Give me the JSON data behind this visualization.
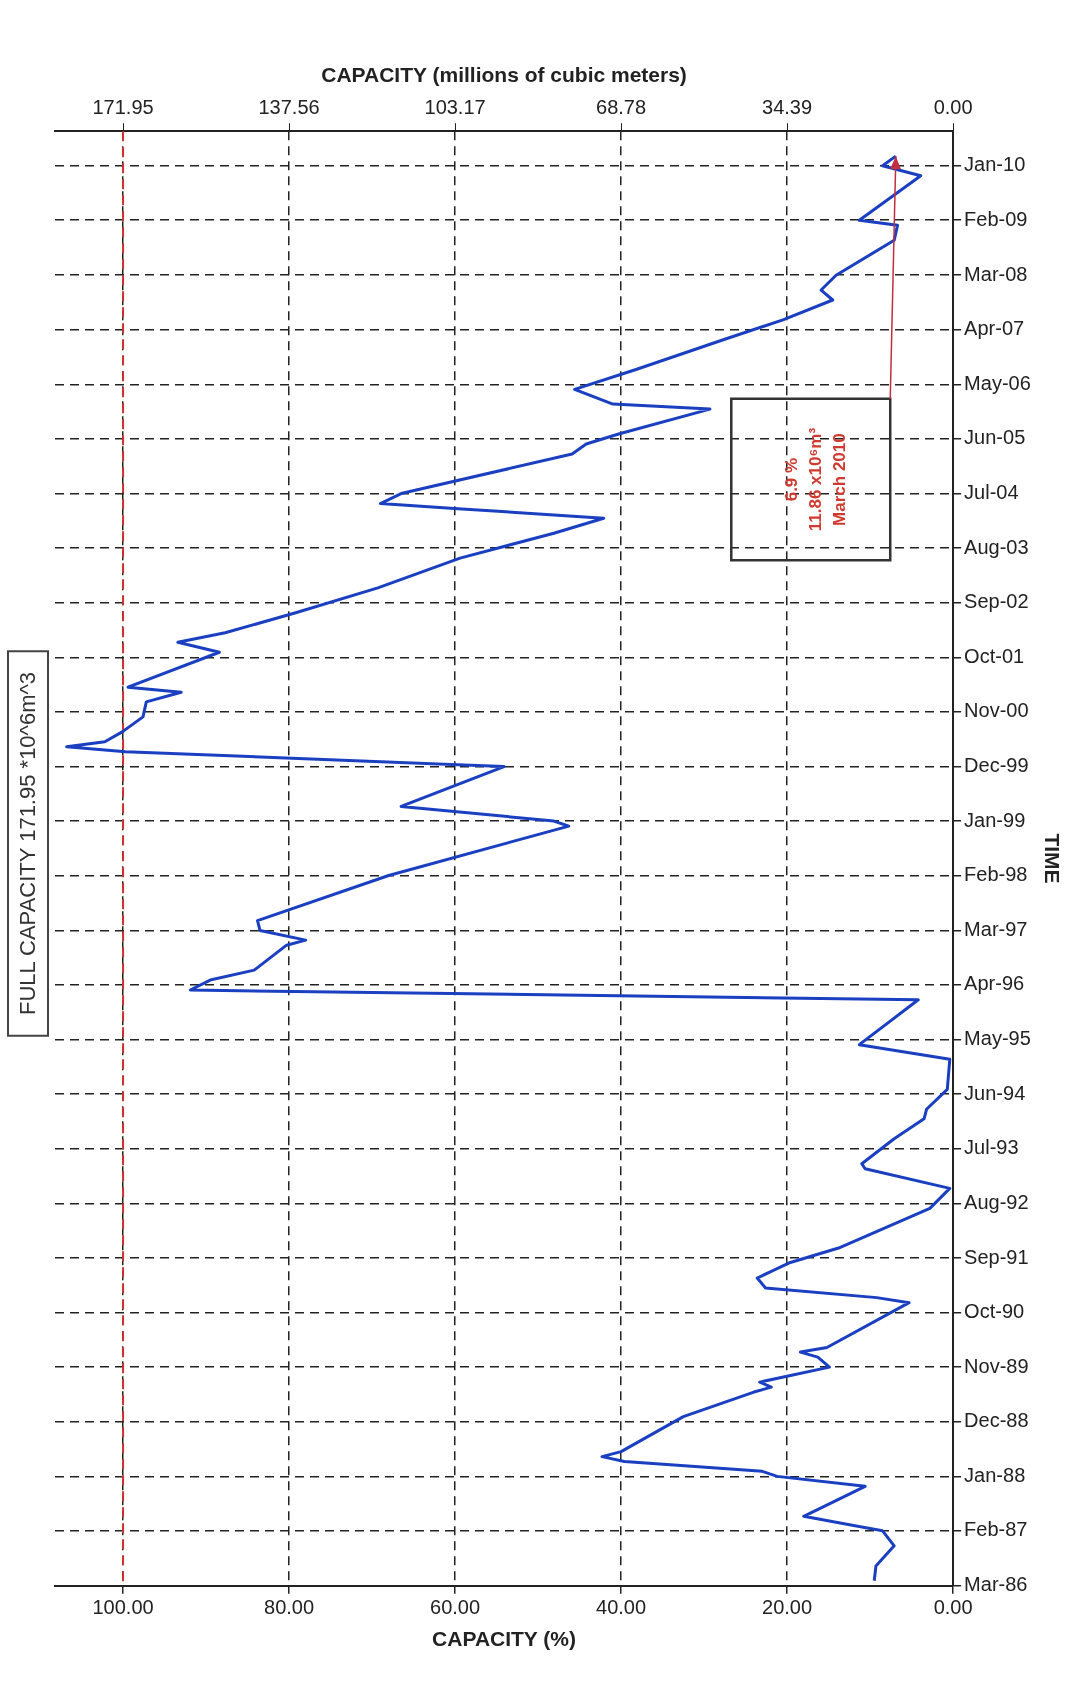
{
  "chart_data": {
    "type": "line",
    "orientation": "horizontal",
    "xlabel": "CAPACITY (%)",
    "x2label": "CAPACITY (millions of cubic meters)",
    "ylabel": "TIME",
    "annotations": [
      "FULL CAPACITY 171.95 *10^6m^3",
      "6.9 %\n11.86 x10⁶m³\nMarch 2010"
    ],
    "ylim": [
      "1986-03",
      "2010-08"
    ],
    "yticks": [
      {
        "value": "1986-03",
        "label": "Mar-86"
      },
      {
        "value": "1987-02",
        "label": "Feb-87"
      },
      {
        "value": "1988-01",
        "label": "Jan-88"
      },
      {
        "value": "1988-12",
        "label": "Dec-88"
      },
      {
        "value": "1989-11",
        "label": "Nov-89"
      },
      {
        "value": "1990-10",
        "label": "Oct-90"
      },
      {
        "value": "1991-09",
        "label": "Sep-91"
      },
      {
        "value": "1992-08",
        "label": "Aug-92"
      },
      {
        "value": "1993-07",
        "label": "Jul-93"
      },
      {
        "value": "1994-06",
        "label": "Jun-94"
      },
      {
        "value": "1995-05",
        "label": "May-95"
      },
      {
        "value": "1996-04",
        "label": "Apr-96"
      },
      {
        "value": "1997-03",
        "label": "Mar-97"
      },
      {
        "value": "1998-02",
        "label": "Feb-98"
      },
      {
        "value": "1999-01",
        "label": "Jan-99"
      },
      {
        "value": "1999-12",
        "label": "Dec-99"
      },
      {
        "value": "2000-11",
        "label": "Nov-00"
      },
      {
        "value": "2001-10",
        "label": "Oct-01"
      },
      {
        "value": "2002-09",
        "label": "Sep-02"
      },
      {
        "value": "2003-08",
        "label": "Aug-03"
      },
      {
        "value": "2004-07",
        "label": "Jul-04"
      },
      {
        "value": "2005-06",
        "label": "Jun-05"
      },
      {
        "value": "2006-05",
        "label": "May-06"
      },
      {
        "value": "2007-04",
        "label": "Apr-07"
      },
      {
        "value": "2008-03",
        "label": "Mar-08"
      },
      {
        "value": "2009-02",
        "label": "Feb-09"
      },
      {
        "value": "2010-01",
        "label": "Jan-10"
      }
    ],
    "xlim": [
      108.2,
      0
    ],
    "xticks": [
      {
        "value": 0,
        "label": "0.00"
      },
      {
        "value": 20,
        "label": "20.00"
      },
      {
        "value": 40,
        "label": "40.00"
      },
      {
        "value": 60,
        "label": "60.00"
      },
      {
        "value": 80,
        "label": "80.00"
      },
      {
        "value": 100,
        "label": "100.00"
      }
    ],
    "x2lim": [
      186.05,
      0
    ],
    "x2ticks": [
      {
        "value": 0,
        "label": "0.00"
      },
      {
        "value": 34.39,
        "label": "34.39"
      },
      {
        "value": 68.78,
        "label": "68.78"
      },
      {
        "value": 103.17,
        "label": "103.17"
      },
      {
        "value": 137.56,
        "label": "137.56"
      },
      {
        "value": 171.95,
        "label": "171.95"
      }
    ],
    "grid": true,
    "ref_lines": [
      {
        "axis": "x",
        "value": 100,
        "color": "#d03030",
        "line_style": "dashed"
      }
    ],
    "series": [
      {
        "color": "#1a3fc0",
        "x": [
          "1986-04",
          "1986-07",
          "1986-11",
          "1987-02",
          "1987-05",
          "1987-11",
          "1988-01",
          "1988-02",
          "1988-04",
          "1988-05",
          "1988-06",
          "1989-01",
          "1989-06",
          "1989-07",
          "1989-08",
          "1989-11",
          "1990-01",
          "1990-02",
          "1990-03",
          "1990-12",
          "1991-01",
          "1991-03",
          "1991-05",
          "1991-08",
          "1991-11",
          "1992-07",
          "1992-11",
          "1993-03",
          "1993-04",
          "1993-09",
          "1994-01",
          "1994-03",
          "1994-07",
          "1995-01",
          "1995-04",
          "1996-01",
          "1996-03",
          "1996-05",
          "1996-07",
          "1996-12",
          "1997-01",
          "1997-03",
          "1997-05",
          "1998-02",
          "1998-12",
          "1999-01",
          "1999-04",
          "1999-12",
          "2000-03",
          "2000-04",
          "2000-05",
          "2000-07",
          "2000-10",
          "2001-01",
          "2001-03",
          "2001-04",
          "2001-11",
          "2002-01",
          "2002-03",
          "2002-07",
          "2002-12",
          "2003-06",
          "2003-11",
          "2004-02",
          "2004-04",
          "2004-05",
          "2004-07",
          "2005-03",
          "2005-05",
          "2005-07",
          "2005-12",
          "2006-01",
          "2006-04",
          "2006-08",
          "2007-02",
          "2007-06",
          "2007-10",
          "2007-12",
          "2008-03",
          "2008-10",
          "2009-01",
          "2009-02",
          "2009-11",
          "2010-01",
          "2010-03"
        ],
        "values": [
          9.5,
          9.3,
          7.1,
          8.5,
          18.0,
          10.6,
          21.2,
          23.0,
          39.6,
          42.3,
          40.0,
          32.5,
          24.0,
          21.9,
          23.3,
          14.9,
          16.3,
          18.4,
          15.2,
          5.3,
          9.2,
          22.6,
          23.6,
          19.8,
          13.8,
          2.8,
          0.4,
          10.6,
          11.0,
          7.1,
          3.5,
          3.2,
          0.7,
          0.4,
          11.3,
          4.2,
          91.9,
          89.5,
          84.2,
          80.3,
          78.0,
          83.5,
          83.8,
          68.0,
          46.3,
          48.1,
          66.5,
          54.1,
          99.7,
          106.8,
          102.2,
          100.1,
          97.6,
          97.2,
          93.0,
          99.4,
          88.4,
          93.4,
          87.7,
          79.2,
          69.3,
          59.4,
          48.1,
          42.1,
          60.1,
          69.0,
          66.5,
          45.9,
          44.2,
          40.3,
          29.3,
          41.0,
          45.6,
          38.2,
          27.6,
          20.5,
          14.5,
          15.9,
          14.1,
          7.1,
          6.7,
          11.3,
          3.9,
          8.5,
          6.9
        ]
      }
    ]
  }
}
